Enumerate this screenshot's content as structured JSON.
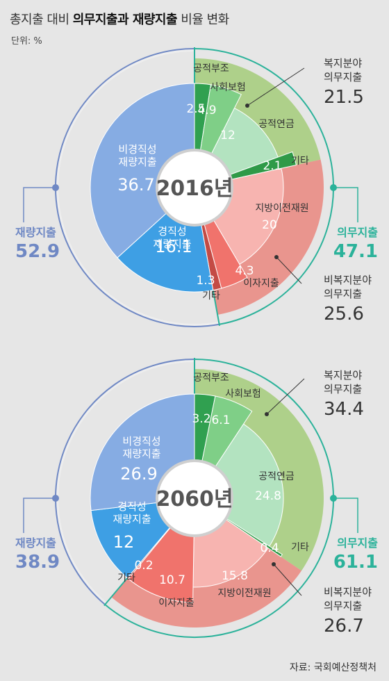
{
  "header": {
    "title_prefix": "총지출 대비 ",
    "title_bold": "의무지출과 재량지출",
    "title_suffix": " 비율 변화",
    "unit": "단위: %"
  },
  "source": "자료: 국회예산정책처",
  "colors": {
    "discretionary_outer": "#6f88c4",
    "mandatory_outer": "#2bb29a",
    "welfare_band": "#aed08a",
    "nonwelfare_band": "#e9958e",
    "disc_nonfixed": "#86ace3",
    "disc_fixed": "#3e9fe4",
    "w_public_aid": "#30a050",
    "w_social_ins": "#7fcf87",
    "w_pension": "#b3e3c0",
    "w_other": "#2f9a48",
    "nw_local_transfer": "#f7b4b0",
    "nw_interest": "#f0736c",
    "nw_other": "#c44b45"
  },
  "chart_data": [
    {
      "type": "pie",
      "year_label": "2016년",
      "categories": [
        "공적부조",
        "사회보험",
        "공적연금",
        "기타",
        "지방이전재원",
        "이자지출",
        "기타",
        "경직성 재량지출",
        "비경직성 재량지출"
      ],
      "values": [
        2.5,
        4.9,
        12,
        2.1,
        20,
        4.3,
        1.3,
        16.1,
        36.7
      ],
      "value_labels": [
        "2.5",
        "4.9",
        "12",
        "2.1",
        "20",
        "4.3",
        "1.3",
        "16.1",
        "36.7"
      ],
      "groups": {
        "mandatory": {
          "label": "의무지출",
          "value": "47.1"
        },
        "discretionary": {
          "label": "재량지출",
          "value": "52.9"
        },
        "welfare": {
          "label": "복지분야 의무지출",
          "value": "21.5"
        },
        "nonwelfare": {
          "label": "비복지분야 의무지출",
          "value": "25.6"
        }
      }
    },
    {
      "type": "pie",
      "year_label": "2060년",
      "categories": [
        "공적부조",
        "사회보험",
        "공적연금",
        "기타",
        "지방이전재원",
        "이자지출",
        "기타",
        "경직성 재량지출",
        "비경직성 재량지출"
      ],
      "values": [
        3.2,
        6.1,
        24.8,
        0.4,
        15.8,
        10.7,
        0.2,
        12,
        26.9
      ],
      "value_labels": [
        "3.2",
        "6.1",
        "24.8",
        "0.4",
        "15.8",
        "10.7",
        "0.2",
        "12",
        "26.9"
      ],
      "groups": {
        "mandatory": {
          "label": "의무지출",
          "value": "61.1"
        },
        "discretionary": {
          "label": "재량지출",
          "value": "38.9"
        },
        "welfare": {
          "label": "복지분야 의무지출",
          "value": "34.4"
        },
        "nonwelfare": {
          "label": "비복지분야 의무지출",
          "value": "26.7"
        }
      }
    }
  ]
}
